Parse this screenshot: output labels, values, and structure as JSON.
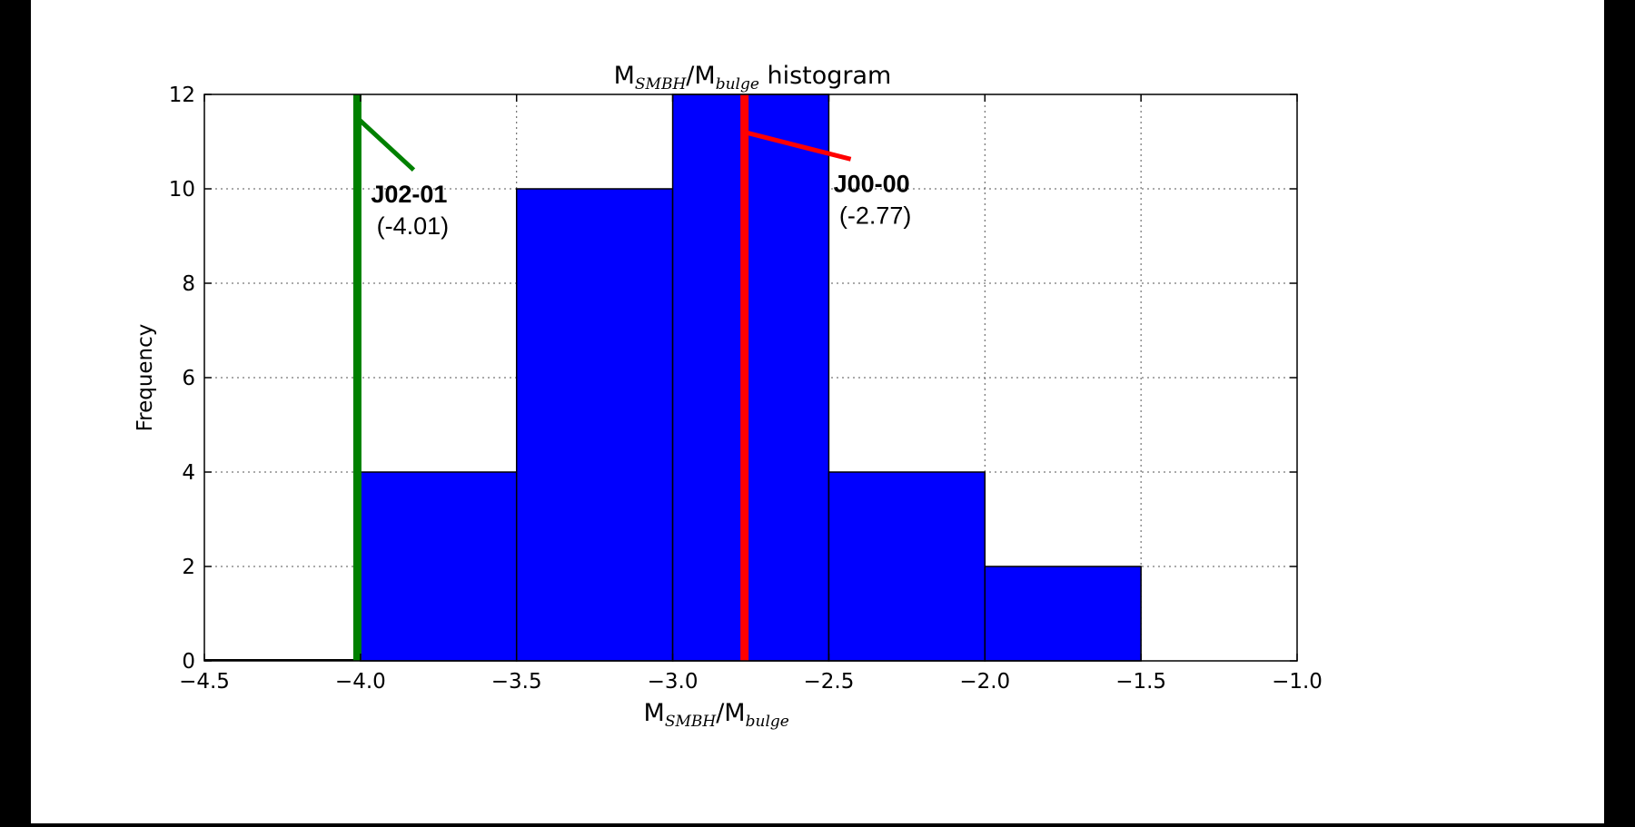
{
  "chart_data": {
    "type": "bar",
    "title": {
      "prefix": "M",
      "sub1": "SMBH",
      "mid": "/M",
      "sub2": "bulge",
      "suffix": " histogram"
    },
    "ylabel": "Frequency",
    "xlabel": {
      "prefix": "M",
      "sub1": "SMBH",
      "mid": "/M",
      "sub2": "bulge"
    },
    "xlim": [
      -4.5,
      -1.0
    ],
    "ylim": [
      0,
      12
    ],
    "xticks": [
      -4.5,
      -4.0,
      -3.5,
      -3.0,
      -2.5,
      -2.0,
      -1.5,
      -1.0
    ],
    "xtick_labels": [
      "−4.5",
      "−4.0",
      "−3.5",
      "−3.0",
      "−2.5",
      "−2.0",
      "−1.5",
      "−1.0"
    ],
    "yticks": [
      0,
      2,
      4,
      6,
      8,
      10,
      12
    ],
    "ytick_labels": [
      "0",
      "2",
      "4",
      "6",
      "8",
      "10",
      "12"
    ],
    "grid": true,
    "bins": [
      {
        "from": -4.0,
        "to": -3.5,
        "count": 4
      },
      {
        "from": -3.5,
        "to": -3.0,
        "count": 10
      },
      {
        "from": -3.0,
        "to": -2.5,
        "count": 12
      },
      {
        "from": -2.5,
        "to": -2.0,
        "count": 4
      },
      {
        "from": -2.0,
        "to": -1.5,
        "count": 2
      }
    ],
    "markers": [
      {
        "label": "J02-01",
        "value_label": "(-4.01)",
        "x": -4.01,
        "color": "#008000",
        "callout_y": 11.5
      },
      {
        "label": "J00-00",
        "value_label": "(-2.77)",
        "x": -2.77,
        "color": "#ff0000",
        "callout_y": 11.2
      }
    ],
    "bar_color": "#0000ff"
  }
}
